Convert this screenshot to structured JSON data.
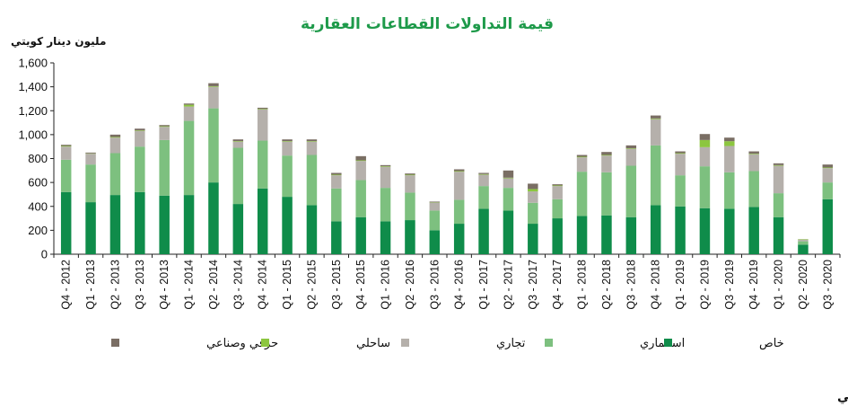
{
  "chart_data": {
    "type": "bar",
    "stacked": true,
    "title": "قيمة التداولات القطاعات العقارية",
    "unit_label": "مليون دينار كويتي",
    "source": "المصدر: وزارة العدل- بيت التمويل الكويتي",
    "ylim": [
      0,
      1600
    ],
    "yticks": [
      "0",
      "200",
      "400",
      "600",
      "800",
      "1,000",
      "1,200",
      "1,400",
      "1,600"
    ],
    "grid": false,
    "legend_position": "bottom",
    "categories": [
      "Q4 - 2012",
      "Q1 - 2013",
      "Q2 - 2013",
      "Q3 - 2013",
      "Q4 - 2013",
      "Q1 - 2014",
      "Q2 - 2014",
      "Q3 - 2014",
      "Q4 - 2014",
      "Q1 - 2015",
      "Q2 - 2015",
      "Q3 - 2015",
      "Q4 - 2015",
      "Q1 - 2016",
      "Q2 - 2016",
      "Q3 - 2016",
      "Q4 - 2016",
      "Q1 - 2017",
      "Q2 - 2017",
      "Q3 - 2017",
      "Q4 - 2017",
      "Q1 - 2018",
      "Q2 - 2018",
      "Q3 - 2018",
      "Q4 - 2018",
      "Q1 - 2019",
      "Q2 - 2019",
      "Q3 - 2019",
      "Q4 - 2019",
      "Q1 - 2020",
      "Q2 - 2020",
      "Q3 - 2020"
    ],
    "series": [
      {
        "name": "خاص",
        "color": "#0f8c4a",
        "values": [
          520,
          435,
          495,
          520,
          490,
          495,
          600,
          420,
          550,
          480,
          410,
          275,
          310,
          275,
          285,
          200,
          255,
          380,
          365,
          255,
          300,
          320,
          325,
          310,
          410,
          400,
          385,
          380,
          395,
          310,
          80,
          460
        ]
      },
      {
        "name": "استثماري",
        "color": "#7dc07f",
        "values": [
          270,
          315,
          350,
          380,
          465,
          620,
          620,
          470,
          400,
          345,
          420,
          275,
          310,
          280,
          230,
          165,
          200,
          190,
          190,
          175,
          160,
          370,
          360,
          430,
          500,
          260,
          350,
          305,
          300,
          200,
          28,
          140
        ]
      },
      {
        "name": "تجاري",
        "color": "#b5b0ab",
        "values": [
          110,
          90,
          130,
          130,
          110,
          120,
          180,
          50,
          260,
          115,
          110,
          110,
          160,
          175,
          145,
          65,
          235,
          95,
          80,
          95,
          110,
          120,
          140,
          140,
          220,
          180,
          160,
          220,
          140,
          230,
          12,
          120
        ]
      },
      {
        "name": "ساحلي",
        "color": "#8cc63f",
        "values": [
          5,
          3,
          5,
          5,
          5,
          15,
          5,
          5,
          5,
          5,
          5,
          5,
          5,
          5,
          5,
          3,
          5,
          5,
          5,
          20,
          5,
          5,
          5,
          5,
          5,
          5,
          60,
          40,
          5,
          5,
          4,
          5
        ]
      },
      {
        "name": "حرفي وصناعي",
        "color": "#7a6e64",
        "values": [
          10,
          7,
          20,
          15,
          10,
          10,
          25,
          15,
          10,
          15,
          15,
          15,
          35,
          10,
          10,
          7,
          15,
          10,
          60,
          45,
          10,
          15,
          25,
          25,
          25,
          15,
          50,
          30,
          20,
          15,
          1,
          25
        ]
      }
    ]
  }
}
